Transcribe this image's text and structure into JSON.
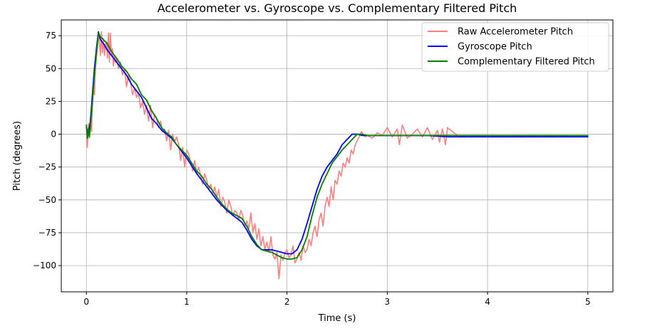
{
  "chart_data": {
    "type": "line",
    "title": "Accelerometer vs. Gyroscope vs. Complementary Filtered Pitch",
    "xlabel": "Time (s)",
    "ylabel": "Pitch (degrees)",
    "xlim": [
      -0.25,
      5.25
    ],
    "ylim": [
      -120,
      87
    ],
    "xticks": [
      0,
      1,
      2,
      3,
      4,
      5
    ],
    "xtick_labels": [
      "0",
      "1",
      "2",
      "3",
      "4",
      "5"
    ],
    "yticks": [
      -100,
      -75,
      -50,
      -25,
      0,
      25,
      50,
      75
    ],
    "ytick_labels": [
      "−100",
      "−75",
      "−50",
      "−25",
      "0",
      "25",
      "50",
      "75"
    ],
    "grid": true,
    "legend_position": "top-right",
    "series": [
      {
        "name": "Raw Accelerometer Pitch",
        "color": "#ff7f7f",
        "x": [
          0,
          0.01,
          0.02,
          0.03,
          0.04,
          0.05,
          0.06,
          0.07,
          0.08,
          0.09,
          0.1,
          0.11,
          0.12,
          0.13,
          0.14,
          0.15,
          0.16,
          0.17,
          0.18,
          0.19,
          0.2,
          0.21,
          0.22,
          0.23,
          0.24,
          0.25,
          0.26,
          0.27,
          0.28,
          0.29,
          0.3,
          0.32,
          0.34,
          0.36,
          0.38,
          0.4,
          0.42,
          0.44,
          0.46,
          0.48,
          0.5,
          0.52,
          0.54,
          0.56,
          0.58,
          0.6,
          0.62,
          0.64,
          0.66,
          0.68,
          0.7,
          0.72,
          0.74,
          0.76,
          0.78,
          0.8,
          0.82,
          0.84,
          0.86,
          0.88,
          0.9,
          0.92,
          0.94,
          0.96,
          0.98,
          1.0,
          1.02,
          1.04,
          1.06,
          1.08,
          1.1,
          1.12,
          1.14,
          1.16,
          1.18,
          1.2,
          1.22,
          1.24,
          1.26,
          1.28,
          1.3,
          1.32,
          1.34,
          1.36,
          1.38,
          1.4,
          1.42,
          1.44,
          1.46,
          1.48,
          1.5,
          1.52,
          1.54,
          1.56,
          1.58,
          1.6,
          1.62,
          1.64,
          1.66,
          1.68,
          1.7,
          1.72,
          1.74,
          1.76,
          1.78,
          1.8,
          1.82,
          1.84,
          1.86,
          1.88,
          1.9,
          1.92,
          1.94,
          1.96,
          1.98,
          2.0,
          2.02,
          2.04,
          2.06,
          2.08,
          2.1,
          2.12,
          2.14,
          2.16,
          2.18,
          2.2,
          2.22,
          2.24,
          2.26,
          2.28,
          2.3,
          2.32,
          2.34,
          2.36,
          2.38,
          2.4,
          2.42,
          2.44,
          2.46,
          2.48,
          2.5,
          2.52,
          2.54,
          2.56,
          2.58,
          2.6,
          2.62,
          2.64,
          2.66,
          2.68,
          2.7,
          2.72,
          2.74,
          2.76,
          2.78,
          2.8,
          2.85,
          2.9,
          2.95,
          3.0,
          3.05,
          3.1,
          3.12,
          3.15,
          3.2,
          3.25,
          3.3,
          3.35,
          3.4,
          3.45,
          3.5,
          3.52,
          3.55,
          3.58,
          3.6,
          3.65,
          3.7,
          3.8,
          3.9,
          4.0,
          4.1,
          4.2,
          4.3,
          4.4,
          4.5,
          4.6,
          4.7,
          4.8,
          4.9,
          5.0
        ],
        "y": [
          5,
          -10,
          8,
          -3,
          12,
          2,
          20,
          35,
          30,
          50,
          58,
          65,
          75,
          70,
          60,
          78,
          62,
          72,
          60,
          68,
          70,
          58,
          77,
          55,
          77,
          60,
          65,
          52,
          60,
          55,
          58,
          50,
          55,
          45,
          50,
          36,
          45,
          40,
          30,
          35,
          28,
          32,
          20,
          25,
          15,
          22,
          10,
          22,
          5,
          15,
          12,
          5,
          10,
          2,
          4,
          -5,
          3,
          -12,
          0,
          -6,
          -2,
          -8,
          -20,
          -10,
          -25,
          -12,
          -15,
          -22,
          -28,
          -20,
          -30,
          -25,
          -32,
          -38,
          -30,
          -35,
          -42,
          -38,
          -45,
          -40,
          -48,
          -42,
          -55,
          -48,
          -52,
          -60,
          -50,
          -55,
          -62,
          -58,
          -60,
          -65,
          -58,
          -62,
          -70,
          -66,
          -72,
          -60,
          -75,
          -68,
          -80,
          -72,
          -85,
          -78,
          -88,
          -82,
          -90,
          -78,
          -92,
          -95,
          -90,
          -110,
          -92,
          -96,
          -90,
          -88,
          -94,
          -92,
          -85,
          -98,
          -95,
          -90,
          -96,
          -85,
          -90,
          -88,
          -80,
          -85,
          -75,
          -70,
          -78,
          -65,
          -60,
          -70,
          -55,
          -48,
          -55,
          -40,
          -50,
          -35,
          -38,
          -28,
          -32,
          -22,
          -25,
          -18,
          -22,
          -12,
          -15,
          -8,
          -5,
          -2,
          2,
          0,
          -2,
          -1,
          -3,
          1,
          -1,
          5,
          -2,
          4,
          -8,
          7,
          -3,
          0,
          4,
          -2,
          5,
          -4,
          3,
          -6,
          4,
          -8,
          5,
          2,
          -1,
          -2,
          -1,
          -2,
          -1,
          -2,
          -1,
          -2,
          -1,
          -1,
          -2,
          -1,
          -1,
          -1
        ]
      },
      {
        "name": "Gyroscope Pitch",
        "color": "#0000ff",
        "x": [
          0,
          0.02,
          0.04,
          0.06,
          0.08,
          0.1,
          0.12,
          0.13,
          0.14,
          0.16,
          0.18,
          0.2,
          0.25,
          0.3,
          0.35,
          0.4,
          0.45,
          0.5,
          0.55,
          0.6,
          0.65,
          0.7,
          0.75,
          0.8,
          0.85,
          0.9,
          0.95,
          1.0,
          1.05,
          1.1,
          1.15,
          1.2,
          1.25,
          1.3,
          1.35,
          1.4,
          1.45,
          1.5,
          1.55,
          1.6,
          1.65,
          1.7,
          1.75,
          1.8,
          1.85,
          1.9,
          1.95,
          2.0,
          2.05,
          2.1,
          2.15,
          2.2,
          2.25,
          2.3,
          2.35,
          2.4,
          2.45,
          2.5,
          2.55,
          2.6,
          2.65,
          2.7,
          2.75,
          2.8,
          2.9,
          3.0,
          3.2,
          3.4,
          3.6,
          3.8,
          4.0,
          4.2,
          4.4,
          4.6,
          4.8,
          5.0
        ],
        "y": [
          5,
          0,
          10,
          30,
          50,
          65,
          78,
          75,
          72,
          70,
          68,
          65,
          60,
          55,
          50,
          45,
          38,
          33,
          28,
          20,
          12,
          8,
          3,
          0,
          -3,
          -8,
          -13,
          -18,
          -24,
          -30,
          -35,
          -40,
          -45,
          -50,
          -54,
          -58,
          -61,
          -64,
          -67,
          -73,
          -80,
          -85,
          -88,
          -88,
          -88,
          -89,
          -90,
          -91,
          -91,
          -88,
          -80,
          -68,
          -55,
          -42,
          -32,
          -25,
          -20,
          -15,
          -8,
          -4,
          0,
          0,
          -1,
          -1,
          -1,
          -1,
          -1,
          -1,
          -2,
          -2,
          -2,
          -2,
          -2,
          -2,
          -2,
          -2
        ]
      },
      {
        "name": "Complementary Filtered Pitch",
        "color": "#008000",
        "x": [
          0,
          0.01,
          0.02,
          0.03,
          0.04,
          0.06,
          0.08,
          0.1,
          0.12,
          0.13,
          0.14,
          0.16,
          0.18,
          0.2,
          0.25,
          0.3,
          0.35,
          0.4,
          0.45,
          0.5,
          0.55,
          0.6,
          0.65,
          0.7,
          0.75,
          0.8,
          0.85,
          0.9,
          0.95,
          1.0,
          1.05,
          1.1,
          1.15,
          1.2,
          1.25,
          1.3,
          1.35,
          1.4,
          1.45,
          1.5,
          1.55,
          1.6,
          1.65,
          1.7,
          1.75,
          1.8,
          1.85,
          1.9,
          1.95,
          2.0,
          2.05,
          2.1,
          2.15,
          2.2,
          2.25,
          2.3,
          2.35,
          2.4,
          2.45,
          2.5,
          2.55,
          2.6,
          2.65,
          2.7,
          2.75,
          2.8,
          2.9,
          3.0,
          3.2,
          3.4,
          3.6,
          3.8,
          4.0,
          4.2,
          4.4,
          4.6,
          4.8,
          5.0
        ],
        "y": [
          7,
          -3,
          4,
          -2,
          6,
          25,
          45,
          62,
          77,
          76,
          74,
          73,
          71,
          70,
          63,
          58,
          52,
          48,
          42,
          38,
          30,
          26,
          18,
          12,
          5,
          1,
          -2,
          -8,
          -12,
          -16,
          -22,
          -28,
          -32,
          -38,
          -42,
          -48,
          -53,
          -57,
          -60,
          -62,
          -64,
          -70,
          -78,
          -84,
          -88,
          -89,
          -90,
          -92,
          -94,
          -95,
          -95,
          -94,
          -88,
          -78,
          -62,
          -48,
          -38,
          -30,
          -22,
          -17,
          -12,
          -8,
          -4,
          0,
          0,
          -1,
          -1,
          -1,
          -1,
          -1,
          -1,
          -1,
          -1,
          -1,
          -1,
          -1,
          -1,
          -1
        ]
      }
    ]
  }
}
